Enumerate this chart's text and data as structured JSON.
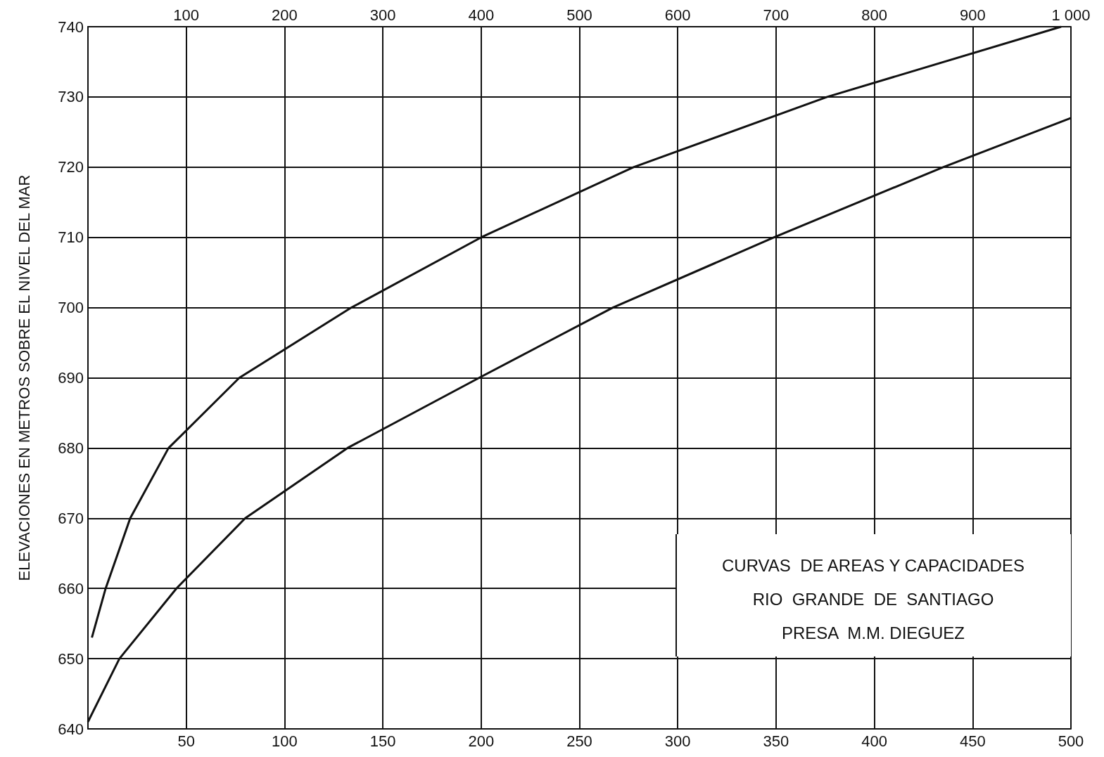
{
  "chart_data": {
    "type": "line",
    "ylabel": "ELEVACIONES EN METROS SOBRE EL NIVEL DEL MAR",
    "annotations": [
      "CURVAS  DE AREAS Y CAPACIDADES",
      "RIO  GRANDE  DE  SANTIAGO",
      "PRESA  M.M. DIEGUEZ"
    ],
    "xlim": [
      0,
      500
    ],
    "xticks": [
      50,
      100,
      150,
      200,
      250,
      300,
      350,
      400,
      450,
      500
    ],
    "x2lim": [
      0,
      1000
    ],
    "x2ticks": [
      100,
      200,
      300,
      400,
      500,
      600,
      700,
      800,
      900,
      {
        "value": 1000,
        "label": "1 000"
      }
    ],
    "ylim": [
      640,
      740
    ],
    "yticks": [
      640,
      650,
      660,
      670,
      680,
      690,
      700,
      710,
      720,
      730,
      740
    ],
    "grid": true,
    "line_style": "solid",
    "marker": "none",
    "series": [
      {
        "color": "#111111",
        "axis": "x2",
        "x": [
          4,
          18,
          43,
          82,
          154,
          268,
          400,
          555,
          752,
          990
        ],
        "values": [
          653,
          660,
          670,
          680,
          690,
          700,
          710,
          720,
          730,
          740
        ]
      },
      {
        "color": "#111111",
        "x": [
          0,
          16,
          45,
          80,
          132,
          199,
          267,
          349,
          435,
          500
        ],
        "values": [
          641,
          650,
          660,
          670,
          680,
          690,
          700,
          710,
          720,
          727
        ]
      }
    ]
  }
}
